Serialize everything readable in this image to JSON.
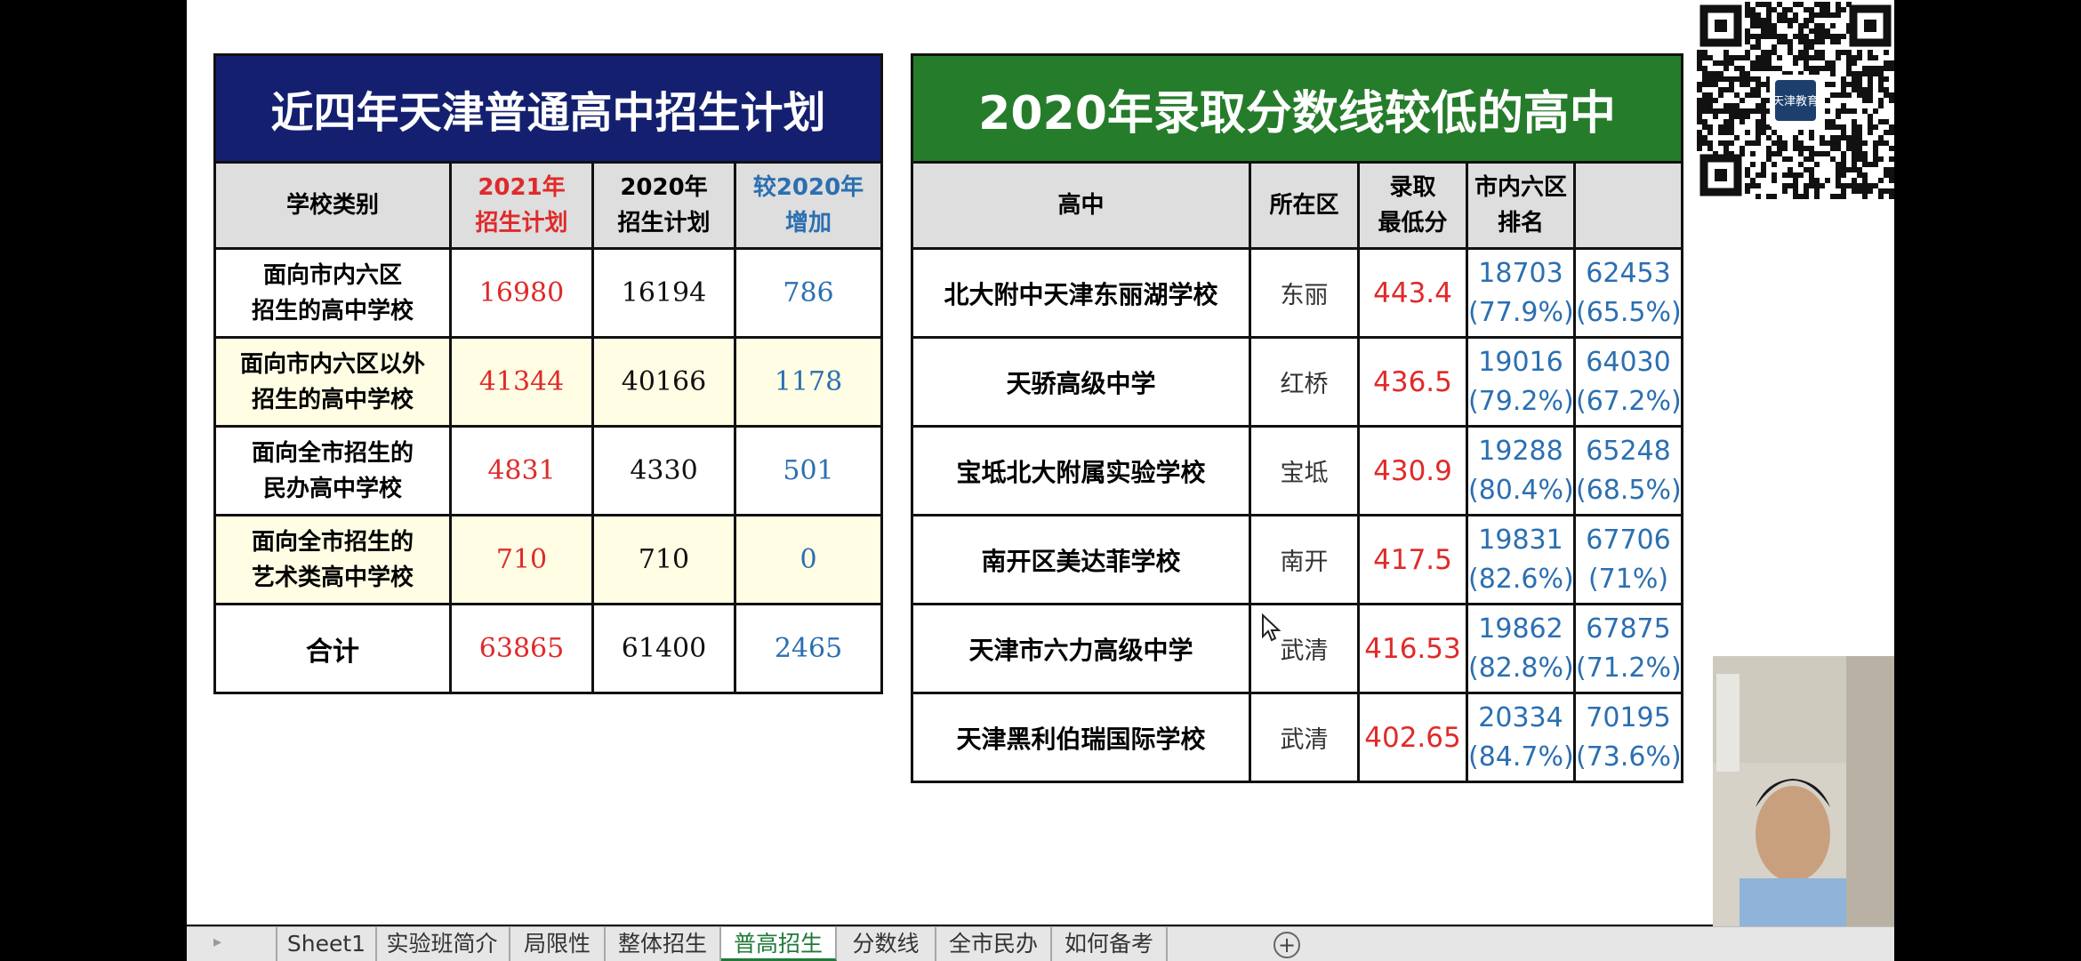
{
  "left_table": {
    "title": "近四年天津普通高中招生计划",
    "headers": [
      "学校类别",
      "2021年\n招生计划",
      "2020年\n招生计划",
      "较2020年\n增加"
    ],
    "rows": [
      {
        "category": "面向市内六区\n招生的高中学校",
        "plan_2021": "16980",
        "plan_2020": "16194",
        "increase": "786"
      },
      {
        "category": "面向市内六区以外\n招生的高中学校",
        "plan_2021": "41344",
        "plan_2020": "40166",
        "increase": "1178"
      },
      {
        "category": "面向全市招生的\n民办高中学校",
        "plan_2021": "4831",
        "plan_2020": "4330",
        "increase": "501"
      },
      {
        "category": "面向全市招生的\n艺术类高中学校",
        "plan_2021": "710",
        "plan_2020": "710",
        "increase": "0"
      }
    ],
    "total": {
      "category": "合计",
      "plan_2021": "63865",
      "plan_2020": "61400",
      "increase": "2465"
    }
  },
  "right_table": {
    "title": "2020年录取分数线较低的高中",
    "headers": [
      "高中",
      "所在区",
      "录取\n最低分",
      "市内六区\n排名",
      ""
    ],
    "rows": [
      {
        "school": "北大附中天津东丽湖学校",
        "district": "东丽",
        "score": "443.4",
        "rank6": "18703\n(77.9%)",
        "rank_all": "62453\n(65.5%)"
      },
      {
        "school": "天骄高级中学",
        "district": "红桥",
        "score": "436.5",
        "rank6": "19016\n(79.2%)",
        "rank_all": "64030\n(67.2%)"
      },
      {
        "school": "宝坻北大附属实验学校",
        "district": "宝坻",
        "score": "430.9",
        "rank6": "19288\n(80.4%)",
        "rank_all": "65248\n(68.5%)"
      },
      {
        "school": "南开区美达菲学校",
        "district": "南开",
        "score": "417.5",
        "rank6": "19831\n(82.6%)",
        "rank_all": "67706\n(71%)"
      },
      {
        "school": "天津市六力高级中学",
        "district": "武清",
        "score": "416.53",
        "rank6": "19862\n(82.8%)",
        "rank_all": "67875\n(71.2%)"
      },
      {
        "school": "天津黑利伯瑞国际学校",
        "district": "武清",
        "score": "402.65",
        "rank6": "20334\n(84.7%)",
        "rank_all": "70195\n(73.6%)"
      }
    ]
  },
  "qr_logo_text": "天津教育",
  "sheet_tabs": [
    "Sheet1",
    "实验班简介",
    "局限性",
    "整体招生",
    "普高招生",
    "分数线",
    "全市民办",
    "如何备考"
  ],
  "active_tab": "普高招生",
  "add_sheet_label": "+",
  "colors": {
    "left_title_bg": "#14206f",
    "right_title_bg": "#257c2a",
    "red": "#e02a2a",
    "blue": "#2b6fb1"
  }
}
